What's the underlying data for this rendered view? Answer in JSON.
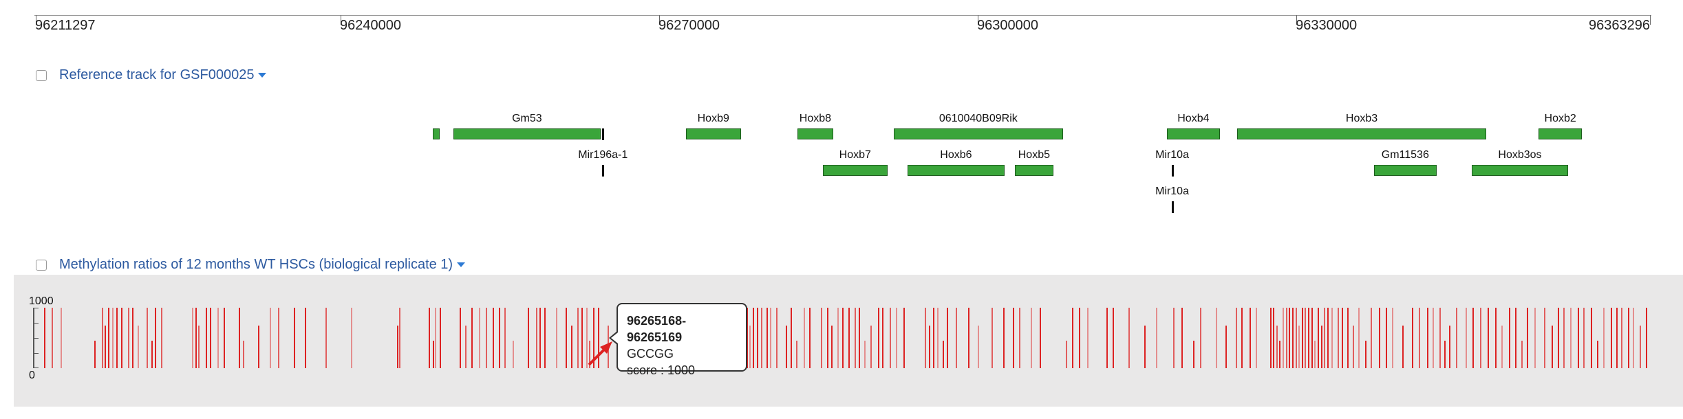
{
  "ruler": {
    "labels": [
      {
        "pos": 96211297,
        "text": "96211297"
      },
      {
        "pos": 96240000,
        "text": "96240000"
      },
      {
        "pos": 96270000,
        "text": "96270000"
      },
      {
        "pos": 96300000,
        "text": "96300000"
      },
      {
        "pos": 96330000,
        "text": "96330000"
      },
      {
        "pos": 96363296,
        "text": "96363296"
      }
    ],
    "start": 96211297,
    "end": 96363296
  },
  "reference_track": {
    "title": "Reference track for GSF000025",
    "checked": false
  },
  "genes": [
    {
      "name": "",
      "start": 96248700,
      "end": 96249300,
      "row": 0
    },
    {
      "name": "Gm53",
      "start": 96250600,
      "end": 96264500,
      "row": 0
    },
    {
      "name": "Hoxb9",
      "start": 96272500,
      "end": 96277700,
      "row": 0
    },
    {
      "name": "Hoxb8",
      "start": 96283000,
      "end": 96286400,
      "row": 0
    },
    {
      "name": "0610040B09Rik",
      "start": 96292100,
      "end": 96308000,
      "row": 0
    },
    {
      "name": "Hoxb4",
      "start": 96317800,
      "end": 96322800,
      "row": 0
    },
    {
      "name": "Hoxb3",
      "start": 96324400,
      "end": 96347900,
      "row": 0
    },
    {
      "name": "Hoxb2",
      "start": 96352800,
      "end": 96356900,
      "row": 0
    },
    {
      "name": "Hoxb7",
      "start": 96285400,
      "end": 96291500,
      "row": 1
    },
    {
      "name": "Hoxb6",
      "start": 96293400,
      "end": 96302500,
      "row": 1
    },
    {
      "name": "Hoxb5",
      "start": 96303500,
      "end": 96307100,
      "row": 1
    },
    {
      "name": "Gm11536",
      "start": 96337300,
      "end": 96343200,
      "row": 1
    },
    {
      "name": "Hoxb3os",
      "start": 96346500,
      "end": 96355600,
      "row": 1
    }
  ],
  "mirnas": [
    {
      "name": "",
      "pos": 96264700,
      "row": 0
    },
    {
      "name": "Mir196a-1",
      "pos": 96264700,
      "row": 1
    },
    {
      "name": "Mir10a",
      "pos": 96318300,
      "row": 1
    },
    {
      "name": "Mir10a",
      "pos": 96318300,
      "row": 2
    }
  ],
  "methylation_track": {
    "title": "Methylation ratios of 12 months WT HSCs (biological replicate 1)",
    "checked": false,
    "y_max_label": "1000",
    "y_min_label": "0"
  },
  "methylation_positions": [
    96212100,
    96212800,
    96213600,
    96216800,
    96217500,
    96217800,
    96218100,
    96218500,
    96218900,
    96219300,
    96220000,
    96220400,
    96220900,
    96221700,
    96222200,
    96222500,
    96223100,
    96226000,
    96226300,
    96226600,
    96227300,
    96227700,
    96228400,
    96229000,
    96230400,
    96230800,
    96232200,
    96233300,
    96234100,
    96235600,
    96236600,
    96238600,
    96241000,
    96245300,
    96245500,
    96248300,
    96248700,
    96248900,
    96249300,
    96251200,
    96251700,
    96252300,
    96253000,
    96253700,
    96254300,
    96254900,
    96255400,
    96256200,
    96257600,
    96258400,
    96258700,
    96259200,
    96260300,
    96261200,
    96261700,
    96262300,
    96262700,
    96263100,
    96263400,
    96263800,
    96264200,
    96265168,
    96266000,
    96266600,
    96267400,
    96268100,
    96268800,
    96269600,
    96270400,
    96270800,
    96271300,
    96272300,
    96273200,
    96274000,
    96274600,
    96275700,
    96276000,
    96276400,
    96277000,
    96277300,
    96277700,
    96278200,
    96278500,
    96278800,
    96279200,
    96279600,
    96280100,
    96280400,
    96281000,
    96281900,
    96282400,
    96282900,
    96283600,
    96284100,
    96285200,
    96285800,
    96286200,
    96286800,
    96287200,
    96287800,
    96288400,
    96288800,
    96289300,
    96289900,
    96290600,
    96291000,
    96291700,
    96292300,
    96293000,
    96295000,
    96295400,
    96295800,
    96296200,
    96296700,
    96297100,
    96297900,
    96299100,
    96300000,
    96301300,
    96302400,
    96303300,
    96303900,
    96305000,
    96305800,
    96308300,
    96308900,
    96309500,
    96310300,
    96312100,
    96312700,
    96314200,
    96315700,
    96316800,
    96318400,
    96319200,
    96320300,
    96320900,
    96322400,
    96323300,
    96324300,
    96324800,
    96325600,
    96326200,
    96327500,
    96327800,
    96328100,
    96328400,
    96328700,
    96329000,
    96329300,
    96329600,
    96329900,
    96330200,
    96330500,
    96330800,
    96331100,
    96331400,
    96331700,
    96332000,
    96332300,
    96332600,
    96332900,
    96333300,
    96333900,
    96334300,
    96334800,
    96335300,
    96335800,
    96336500,
    96337000,
    96337800,
    96338400,
    96339000,
    96340000,
    96340900,
    96341500,
    96342300,
    96342800,
    96343500,
    96343900,
    96344400,
    96345000,
    96345900,
    96346600,
    96347300,
    96348000,
    96348700,
    96349300,
    96350000,
    96350600,
    96351200,
    96351700,
    96352400,
    96353300,
    96354000,
    96354600,
    96355100,
    96355800,
    96356500,
    96357000,
    96357700,
    96358300,
    96358900,
    96359600,
    96360100,
    96360600,
    96361200,
    96361700,
    96362300,
    96362900
  ],
  "tooltip": {
    "range": "96265168-96265169",
    "sequence": "GCCGG",
    "score": "score : 1000"
  }
}
